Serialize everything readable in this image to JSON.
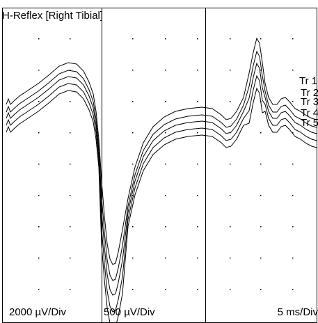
{
  "panel": {
    "title": "H-Reflex [Right Tibial]",
    "left_scale": "2000 µV/Div",
    "right_scale": "500 µV/Div",
    "time_scale": "5 ms/Div"
  },
  "traces": [
    {
      "label": "Tr 1"
    },
    {
      "label": "Tr 2"
    },
    {
      "label": "Tr 3"
    },
    {
      "label": "Tr 4"
    },
    {
      "label": "Tr 5"
    }
  ],
  "colors": {
    "background": "#ffffff",
    "trace": "#000000",
    "grid": "#000000"
  }
}
